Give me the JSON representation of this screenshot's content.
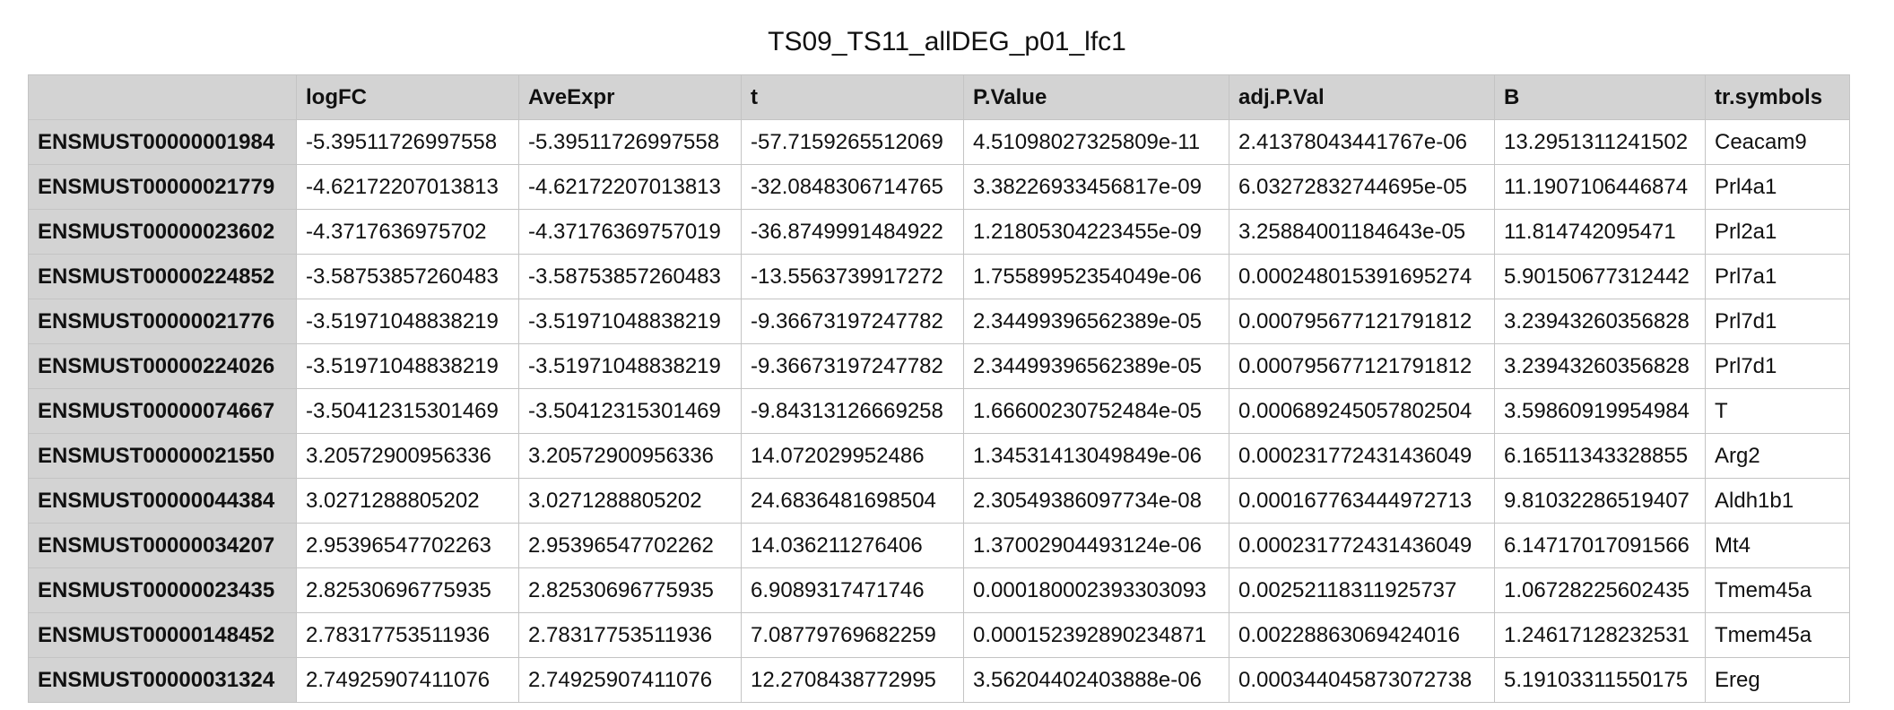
{
  "title": "TS09_TS11_allDEG_p01_lfc1",
  "table": {
    "columns": [
      "",
      "logFC",
      "AveExpr",
      "t",
      "P.Value",
      "adj.P.Val",
      "B",
      "tr.symbols"
    ],
    "rows": [
      [
        "ENSMUST00000001984",
        "-5.39511726997558",
        "-5.39511726997558",
        "-57.7159265512069",
        "4.51098027325809e-11",
        "2.41378043441767e-06",
        "13.2951311241502",
        "Ceacam9"
      ],
      [
        "ENSMUST00000021779",
        "-4.62172207013813",
        "-4.62172207013813",
        "-32.0848306714765",
        "3.38226933456817e-09",
        "6.03272832744695e-05",
        "11.1907106446874",
        "Prl4a1"
      ],
      [
        "ENSMUST00000023602",
        "-4.3717636975702",
        "-4.37176369757019",
        "-36.8749991484922",
        "1.21805304223455e-09",
        "3.25884001184643e-05",
        "11.814742095471",
        "Prl2a1"
      ],
      [
        "ENSMUST00000224852",
        "-3.58753857260483",
        "-3.58753857260483",
        "-13.5563739917272",
        "1.75589952354049e-06",
        "0.000248015391695274",
        "5.90150677312442",
        "Prl7a1"
      ],
      [
        "ENSMUST00000021776",
        "-3.51971048838219",
        "-3.51971048838219",
        "-9.36673197247782",
        "2.34499396562389e-05",
        "0.000795677121791812",
        "3.23943260356828",
        "Prl7d1"
      ],
      [
        "ENSMUST00000224026",
        "-3.51971048838219",
        "-3.51971048838219",
        "-9.36673197247782",
        "2.34499396562389e-05",
        "0.000795677121791812",
        "3.23943260356828",
        "Prl7d1"
      ],
      [
        "ENSMUST00000074667",
        "-3.50412315301469",
        "-3.50412315301469",
        "-9.84313126669258",
        "1.66600230752484e-05",
        "0.000689245057802504",
        "3.59860919954984",
        "T"
      ],
      [
        "ENSMUST00000021550",
        "3.20572900956336",
        "3.20572900956336",
        "14.072029952486",
        "1.34531413049849e-06",
        "0.000231772431436049",
        "6.16511343328855",
        "Arg2"
      ],
      [
        "ENSMUST00000044384",
        "3.0271288805202",
        "3.0271288805202",
        "24.6836481698504",
        "2.30549386097734e-08",
        "0.000167763444972713",
        "9.81032286519407",
        "Aldh1b1"
      ],
      [
        "ENSMUST00000034207",
        "2.95396547702263",
        "2.95396547702262",
        "14.036211276406",
        "1.37002904493124e-06",
        "0.000231772431436049",
        "6.14717017091566",
        "Mt4"
      ],
      [
        "ENSMUST00000023435",
        "2.82530696775935",
        "2.82530696775935",
        "6.9089317471746",
        "0.000180002393303093",
        "0.00252118311925737",
        "1.06728225602435",
        "Tmem45a"
      ],
      [
        "ENSMUST00000148452",
        "2.78317753511936",
        "2.78317753511936",
        "7.08779769682259",
        "0.000152392890234871",
        "0.00228863069424016",
        "1.24617128232531",
        "Tmem45a"
      ],
      [
        "ENSMUST00000031324",
        "2.74925907411076",
        "2.74925907411076",
        "12.2708438772995",
        "3.56204402403888e-06",
        "0.000344045873072738",
        "5.19103311550175",
        "Ereg"
      ]
    ]
  }
}
